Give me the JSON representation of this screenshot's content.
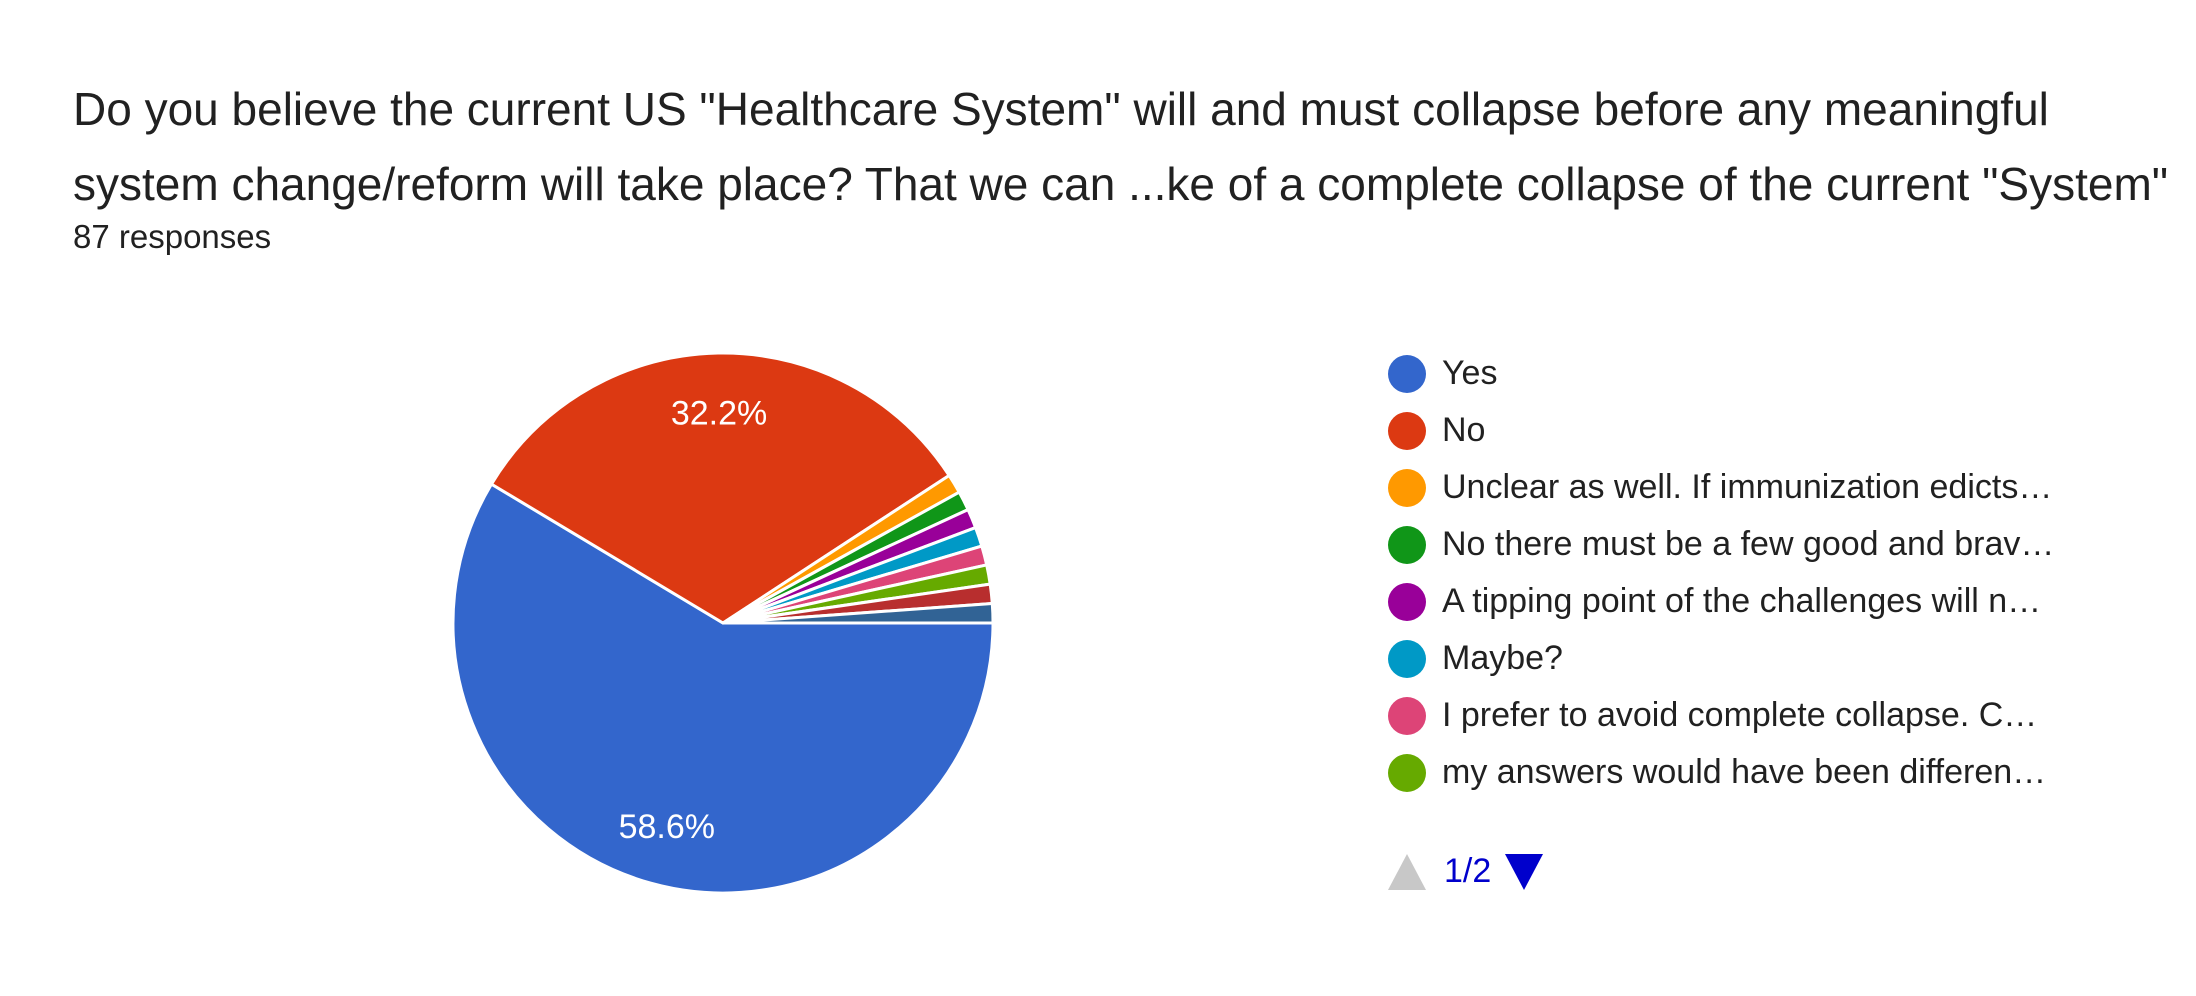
{
  "question": {
    "line1": "Do you believe the current US \"Healthcare System\"  will and must collapse before any meaningful",
    "line2": "system change/reform will take place? That we can ...ke of a complete collapse of the current \"System\"",
    "responses": "87 responses"
  },
  "chart_data": {
    "type": "pie",
    "title": "",
    "total_responses": 87,
    "slices": [
      {
        "label": "Yes",
        "value": 58.6,
        "display": "58.6%",
        "color": "#3366cc"
      },
      {
        "label": "No",
        "value": 32.2,
        "display": "32.2%",
        "color": "#dc3912"
      },
      {
        "label": "Unclear as well. If immunization edicts…",
        "value": 1.15,
        "color": "#ff9900"
      },
      {
        "label": "No there must be a few good and brav…",
        "value": 1.15,
        "color": "#109618"
      },
      {
        "label": "A tipping point of the challenges will n…",
        "value": 1.15,
        "color": "#990099"
      },
      {
        "label": "Maybe?",
        "value": 1.15,
        "color": "#0099c6"
      },
      {
        "label": "I prefer to avoid complete collapse. C…",
        "value": 1.15,
        "color": "#dd4477"
      },
      {
        "label": "my answers would have been differen…",
        "value": 1.15,
        "color": "#66aa00"
      },
      {
        "value": 1.15,
        "color": "#b82e2e"
      },
      {
        "value": 1.15,
        "color": "#316395"
      }
    ],
    "legend_position": "right"
  },
  "pager": {
    "text": "1/2",
    "up_color": "#c8c8c8",
    "down_color": "#0000cc"
  }
}
